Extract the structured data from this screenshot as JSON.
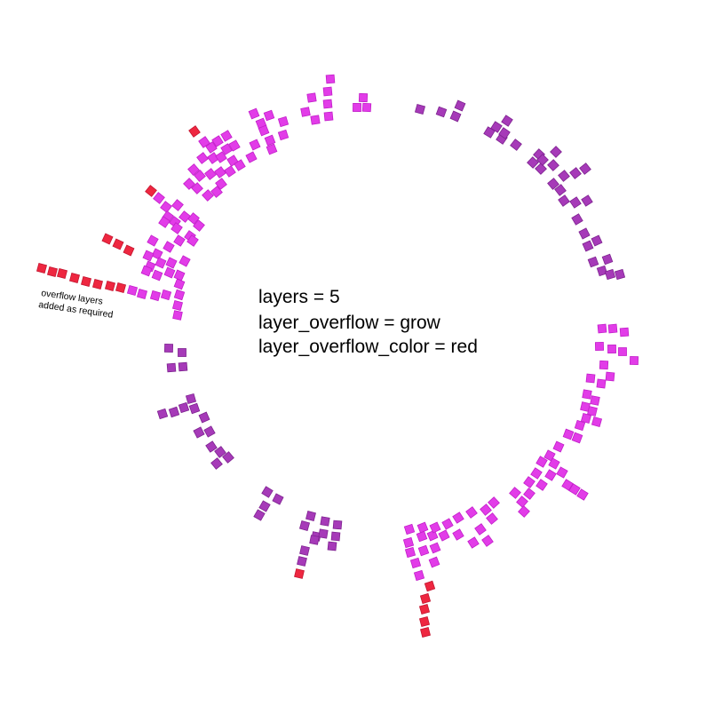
{
  "params": {
    "line1": "layers = 5",
    "line2": "layer_overflow = grow",
    "line3": "layer_overflow_color = red"
  },
  "annotation": {
    "line1": "overflow layers",
    "line2": "added as required"
  },
  "colors": {
    "bright_magenta": "#e23ce8",
    "dark_purple": "#a63ab8",
    "overflow_red": "#ee2740"
  }
}
